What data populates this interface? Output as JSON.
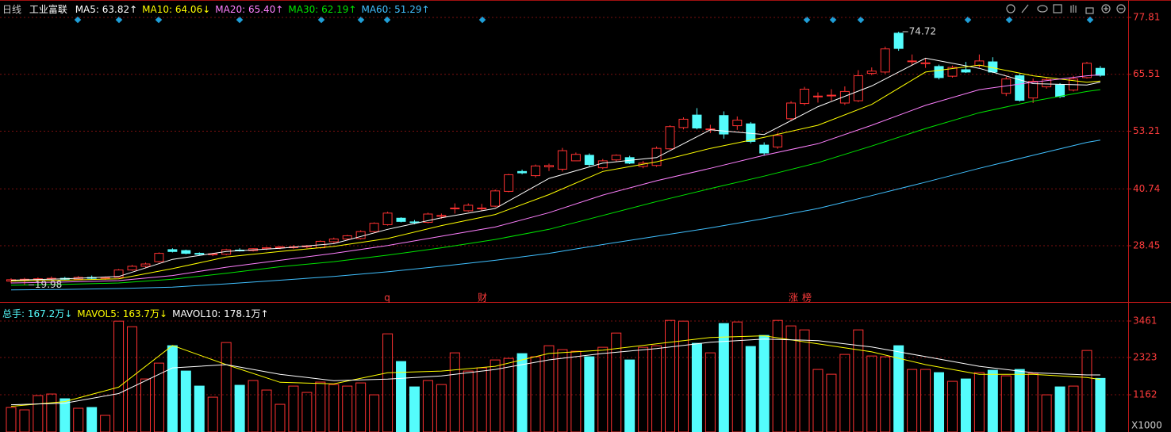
{
  "header": {
    "period": "日线",
    "name": "工业富联"
  },
  "notes": [
    "q",
    "财",
    "涨",
    "榜"
  ],
  "chart_data": [
    {
      "type": "candlestick",
      "open": [
        20.8,
        21.1,
        21.2,
        21.3,
        21.4,
        21.2,
        21.6,
        21.4,
        21.6,
        23.2,
        24.0,
        25.0,
        27.6,
        27.4,
        26.8,
        26.5,
        26.6,
        27.5,
        27.4,
        27.8,
        28.0,
        28.2,
        28.2,
        28.0,
        29.3,
        29.9,
        30.0,
        31.5,
        33.0,
        34.4,
        33.6,
        33.5,
        34.8,
        36.6,
        36.0,
        36.6,
        37.0,
        40.2,
        44.5,
        43.6,
        45.5,
        45.0,
        46.8,
        48.0,
        45.3,
        47.0,
        47.5,
        45.6,
        45.8,
        49.4,
        54.0,
        56.7,
        53.7,
        56.6,
        54.4,
        54.8,
        50.2,
        49.8,
        55.9,
        59.2,
        60.8,
        61.0,
        59.3,
        59.8,
        65.7,
        66.0,
        74.4,
        68.4,
        67.8,
        67.2,
        65.1,
        66.5,
        67.4,
        68.2,
        61.4,
        65.2,
        60.4,
        62.8,
        63.2,
        62.1,
        64.8,
        66.8
      ],
      "high": [
        21.4,
        21.5,
        21.6,
        21.8,
        21.7,
        21.9,
        22.0,
        21.8,
        23.4,
        24.3,
        24.8,
        27.0,
        27.9,
        27.6,
        27.0,
        26.9,
        27.8,
        27.9,
        27.9,
        28.2,
        28.4,
        28.6,
        28.6,
        29.6,
        30.2,
        30.8,
        31.8,
        33.5,
        35.8,
        34.6,
        34.0,
        35.6,
        35.4,
        37.6,
        37.6,
        37.5,
        40.6,
        44.0,
        44.9,
        46.0,
        46.2,
        49.6,
        48.6,
        48.4,
        47.2,
        48.2,
        47.9,
        46.8,
        49.9,
        54.5,
        56.2,
        58.2,
        54.6,
        57.5,
        56.4,
        55.2,
        50.8,
        52.9,
        59.7,
        62.8,
        61.6,
        62.3,
        62.9,
        66.4,
        67.0,
        71.5,
        74.72,
        69.8,
        69.0,
        67.6,
        67.4,
        68.2,
        69.8,
        69.2,
        65.0,
        65.6,
        64.6,
        64.8,
        63.6,
        65.2,
        68.2,
        67.3
      ],
      "low": [
        20.3,
        19.98,
        20.9,
        21.0,
        21.0,
        21.0,
        21.2,
        21.1,
        21.5,
        23.0,
        23.6,
        24.8,
        27.0,
        26.6,
        26.3,
        26.2,
        26.4,
        27.2,
        27.2,
        27.5,
        27.7,
        27.8,
        27.9,
        27.8,
        29.0,
        29.6,
        29.8,
        31.3,
        32.8,
        33.5,
        33.1,
        33.3,
        34.3,
        35.4,
        35.8,
        35.9,
        36.8,
        40.0,
        43.9,
        43.2,
        44.6,
        44.5,
        46.8,
        45.6,
        45.0,
        46.7,
        46.1,
        45.2,
        45.5,
        49.2,
        53.6,
        53.6,
        52.8,
        51.6,
        53.5,
        50.6,
        47.9,
        49.4,
        55.5,
        58.8,
        59.4,
        59.8,
        58.9,
        59.5,
        65.3,
        65.6,
        70.6,
        67.4,
        66.9,
        64.4,
        64.8,
        65.8,
        67.0,
        65.8,
        60.8,
        59.6,
        59.3,
        62.4,
        60.4,
        61.8,
        64.6,
        65.0
      ],
      "close": [
        21.1,
        21.2,
        21.3,
        21.4,
        21.2,
        21.6,
        21.4,
        21.6,
        23.2,
        24.0,
        24.5,
        26.8,
        27.2,
        26.8,
        26.6,
        26.7,
        27.6,
        27.4,
        27.8,
        28.0,
        28.2,
        28.2,
        28.4,
        29.4,
        29.9,
        30.6,
        31.5,
        33.3,
        35.5,
        33.7,
        33.5,
        35.3,
        35.0,
        36.6,
        37.2,
        36.6,
        40.3,
        43.8,
        44.2,
        45.7,
        45.8,
        49.0,
        48.2,
        46.0,
        46.8,
        48.0,
        46.3,
        46.3,
        49.5,
        54.2,
        55.8,
        53.9,
        53.7,
        52.6,
        55.6,
        51.0,
        48.5,
        52.3,
        59.3,
        62.3,
        60.8,
        61.0,
        61.8,
        65.2,
        66.2,
        71.0,
        71.1,
        68.4,
        68.0,
        64.8,
        67.0,
        66.0,
        68.4,
        66.0,
        64.5,
        59.9,
        64.0,
        64.4,
        60.7,
        64.5,
        67.9,
        65.3
      ],
      "up_color": "#ff3232",
      "down_color": "#54fcfc",
      "ylim": [
        16.45,
        80.72
      ],
      "yticks": [
        28.45,
        40.74,
        53.21,
        65.51,
        77.81
      ],
      "grid": true,
      "series": [
        {
          "name": "MA5: 63.82↑",
          "color": "#ffffff",
          "x": [
            0,
            4,
            8,
            12,
            16,
            20,
            24,
            28,
            32,
            36,
            40,
            44,
            48,
            52,
            56,
            60,
            64,
            68,
            72,
            76,
            80,
            81
          ],
          "values": [
            21.0,
            21.3,
            21.8,
            25.5,
            27.2,
            27.9,
            28.9,
            32.0,
            34.5,
            36.5,
            43.0,
            46.3,
            47.5,
            53.5,
            52.5,
            58.5,
            63.0,
            69.0,
            66.8,
            63.5,
            63.2,
            63.82
          ]
        },
        {
          "name": "MA10: 64.06↓",
          "color": "#ffff00",
          "x": [
            0,
            4,
            8,
            12,
            16,
            20,
            24,
            28,
            32,
            36,
            40,
            44,
            48,
            52,
            56,
            60,
            64,
            68,
            72,
            76,
            80,
            81
          ],
          "values": [
            20.8,
            21.0,
            21.3,
            23.5,
            26.0,
            27.2,
            28.3,
            30.0,
            32.8,
            35.2,
            39.5,
            44.5,
            46.6,
            49.5,
            51.9,
            54.5,
            59.0,
            66.0,
            67.5,
            65.2,
            63.8,
            64.06
          ]
        },
        {
          "name": "MA20: 65.40↑",
          "color": "#ff80ff",
          "x": [
            0,
            4,
            8,
            12,
            16,
            20,
            24,
            28,
            32,
            36,
            40,
            44,
            48,
            52,
            56,
            60,
            64,
            68,
            72,
            76,
            80,
            81
          ],
          "values": [
            20.4,
            20.6,
            20.9,
            22.0,
            23.8,
            25.3,
            26.8,
            28.5,
            30.5,
            32.5,
            35.6,
            39.4,
            42.5,
            45.2,
            48.0,
            50.5,
            54.5,
            58.8,
            62.2,
            63.8,
            65.2,
            65.4
          ]
        },
        {
          "name": "MA30: 62.19↑",
          "color": "#00e600",
          "x": [
            0,
            4,
            8,
            12,
            16,
            20,
            24,
            28,
            32,
            36,
            40,
            44,
            48,
            52,
            56,
            60,
            64,
            68,
            72,
            76,
            80,
            81
          ],
          "values": [
            19.9,
            20.1,
            20.4,
            21.2,
            22.5,
            23.9,
            25.0,
            26.4,
            28.0,
            29.8,
            32.0,
            35.0,
            38.0,
            40.8,
            43.5,
            46.4,
            50.0,
            53.8,
            57.2,
            59.7,
            61.8,
            62.19
          ]
        },
        {
          "name": "MA60: 51.29↑",
          "color": "#40c0ff",
          "x": [
            0,
            4,
            8,
            12,
            16,
            20,
            24,
            28,
            32,
            36,
            40,
            44,
            48,
            52,
            56,
            60,
            64,
            68,
            72,
            76,
            80,
            81
          ],
          "values": [
            18.9,
            19.0,
            19.2,
            19.5,
            20.2,
            21.0,
            21.8,
            22.8,
            24.0,
            25.3,
            26.8,
            28.7,
            30.5,
            32.3,
            34.3,
            36.5,
            39.3,
            42.2,
            45.2,
            48.0,
            50.8,
            51.29
          ]
        }
      ]
    },
    {
      "type": "bar",
      "name": "总手: 167.2万↓",
      "color": "#54fcfc",
      "values": [
        765,
        691,
        1136,
        1185,
        1037,
        741,
        765,
        519,
        3457,
        3284,
        1654,
        2148,
        2691,
        1901,
        1432,
        1086,
        2790,
        1457,
        1605,
        1309,
        864,
        1432,
        1235,
        1556,
        1481,
        1432,
        1531,
        1160,
        3062,
        2198,
        1407,
        1605,
        1481,
        2469,
        1901,
        2000,
        2247,
        2296,
        2444,
        2346,
        2691,
        2568,
        2519,
        2346,
        2642,
        3086,
        2247,
        2642,
        2691,
        3481,
        3457,
        2765,
        2469,
        3383,
        3432,
        2667,
        3012,
        3481,
        3309,
        3185,
        1951,
        1802,
        2420,
        3185,
        2370,
        2346,
        2691,
        1951,
        1951,
        1852,
        1580,
        1654,
        1852,
        1926,
        1753,
        1951,
        1827,
        1160,
        1407,
        1432,
        2543,
        1672
      ],
      "ylim": [
        0,
        3881
      ],
      "yticks": [
        1162,
        2323,
        3461
      ],
      "grid": true,
      "unit_label": "X1000",
      "series": [
        {
          "name": "MAVOL5: 163.7万↓",
          "color": "#ffff00",
          "x": [
            0,
            4,
            8,
            12,
            16,
            20,
            24,
            28,
            32,
            36,
            40,
            44,
            48,
            52,
            56,
            60,
            64,
            68,
            72,
            76,
            80,
            81
          ],
          "values": [
            800,
            950,
            1400,
            2700,
            2100,
            1550,
            1500,
            1850,
            1900,
            2050,
            2450,
            2550,
            2750,
            2950,
            3000,
            2750,
            2500,
            2100,
            1800,
            1800,
            1700,
            1637
          ]
        },
        {
          "name": "MAVOL10: 178.1万↑",
          "color": "#ffffff",
          "x": [
            0,
            4,
            8,
            12,
            16,
            20,
            24,
            28,
            32,
            36,
            40,
            44,
            48,
            52,
            56,
            60,
            64,
            68,
            72,
            76,
            80,
            81
          ],
          "values": [
            850,
            900,
            1200,
            2000,
            2100,
            1800,
            1600,
            1650,
            1750,
            1950,
            2250,
            2450,
            2600,
            2800,
            2900,
            2850,
            2650,
            2350,
            2050,
            1850,
            1780,
            1781
          ]
        }
      ]
    }
  ]
}
